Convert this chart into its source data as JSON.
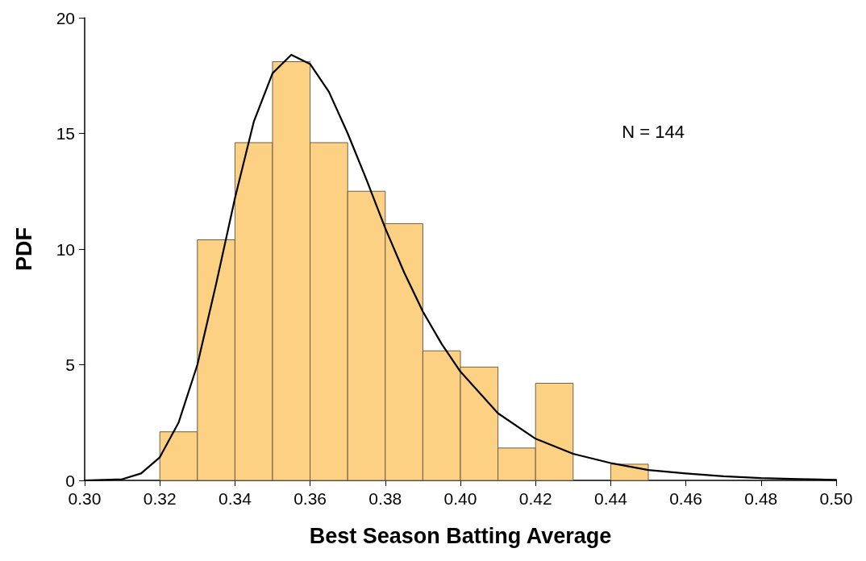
{
  "chart_data": {
    "type": "histogram",
    "xlabel": "Best Season Batting Average",
    "ylabel": "PDF",
    "bins": [
      0.32,
      0.33,
      0.34,
      0.35,
      0.36,
      0.37,
      0.38,
      0.39,
      0.4,
      0.41,
      0.42,
      0.43,
      0.44,
      0.45
    ],
    "values": [
      2.1,
      10.4,
      14.6,
      18.1,
      14.6,
      12.5,
      11.1,
      5.6,
      4.9,
      1.4,
      4.2,
      0,
      0.7
    ],
    "color": "#fcd183",
    "series": [
      {
        "type": "line",
        "color": "#000000",
        "x": [
          0.3,
          0.31,
          0.315,
          0.32,
          0.325,
          0.33,
          0.335,
          0.34,
          0.345,
          0.35,
          0.355,
          0.36,
          0.365,
          0.37,
          0.375,
          0.38,
          0.385,
          0.39,
          0.395,
          0.4,
          0.41,
          0.42,
          0.43,
          0.44,
          0.45,
          0.46,
          0.47,
          0.48,
          0.49,
          0.5
        ],
        "values": [
          0,
          0.05,
          0.3,
          1.0,
          2.5,
          5,
          8.5,
          12.2,
          15.5,
          17.6,
          18.4,
          18.0,
          16.8,
          15.0,
          13.0,
          10.9,
          9.0,
          7.3,
          5.9,
          4.7,
          2.9,
          1.8,
          1.15,
          0.75,
          0.45,
          0.3,
          0.18,
          0.1,
          0.06,
          0.02
        ]
      }
    ],
    "annotations": [
      "N = 144"
    ],
    "xlim": [
      0.3,
      0.5
    ],
    "xticks": [
      {
        "value": 0.3,
        "label": "0.30"
      },
      0.32,
      0.34,
      0.36,
      0.38,
      {
        "value": 0.4,
        "label": "0.40"
      },
      0.42,
      0.44,
      0.46,
      0.48,
      {
        "value": 0.5,
        "label": "0.50"
      }
    ],
    "ylim": [
      0,
      20
    ],
    "yticks": [
      0,
      5,
      10,
      15,
      20
    ],
    "grid": false,
    "legend": false,
    "marker": "none",
    "line_style": "solid"
  }
}
